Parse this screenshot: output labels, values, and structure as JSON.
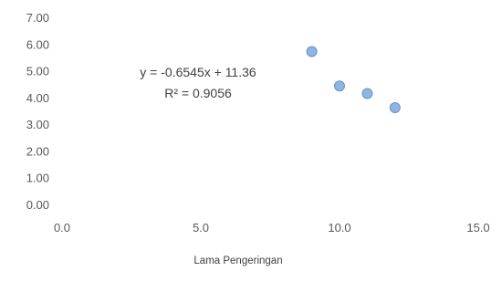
{
  "chart_data": {
    "type": "scatter",
    "xlabel": "Lama Pengeringan",
    "ylabel": "",
    "xlim": [
      0,
      15
    ],
    "ylim": [
      0,
      7
    ],
    "x_tick_labels": [
      "0.0",
      "5.0",
      "10.0",
      "15.0"
    ],
    "x_tick_values": [
      0,
      5,
      10,
      15
    ],
    "y_tick_labels": [
      "0.00",
      "1.00",
      "2.00",
      "3.00",
      "4.00",
      "5.00",
      "6.00",
      "7.00"
    ],
    "y_tick_values": [
      0,
      1,
      2,
      3,
      4,
      5,
      6,
      7
    ],
    "grid": false,
    "legend": "none",
    "points": [
      {
        "x": 9,
        "y": 5.72
      },
      {
        "x": 10,
        "y": 4.43
      },
      {
        "x": 11,
        "y": 4.15
      },
      {
        "x": 12,
        "y": 3.62
      }
    ],
    "annotations": {
      "equation": "y = -0.6545x + 11.36",
      "r_squared": "R² = 0.9056"
    },
    "colors": {
      "marker_fill": "#8eb4e3",
      "marker_stroke": "#6b93c6",
      "text": "#595959"
    }
  }
}
